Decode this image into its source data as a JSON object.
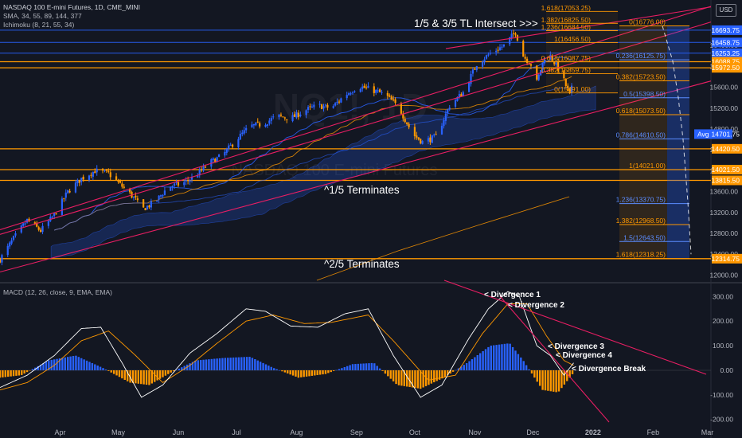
{
  "header": {
    "title": "NASDAQ 100 E-mini Futures, 1D, CME_MINI",
    "sma": "SMA, 34, 55, 89, 144, 377",
    "ichimoku": "Ichimoku (8, 21, 55, 34)",
    "currency": "USD",
    "watermark_symbol": "NQ1!, 1D",
    "watermark_name": "NASDAQ 100 E-mini Futures"
  },
  "colors": {
    "background": "#131722",
    "bull": "#2962ff",
    "bear": "#ff9800",
    "trendline": "#e91e63",
    "level": "#ff9800",
    "fib_blue": "#2962ff",
    "macd_line": "#ffffff",
    "signal_line": "#ff9800",
    "cloud": "#2962ff"
  },
  "chart_data": [
    {
      "type": "candlestick",
      "panel": "price",
      "title": "NASDAQ 100 E-mini Futures, 1D, CME_MINI",
      "x_ticks": [
        "Apr",
        "May",
        "Jun",
        "Jul",
        "Aug",
        "Sep",
        "Oct",
        "Nov",
        "Dec",
        "2022",
        "Feb",
        "Mar"
      ],
      "y_ticks": [
        12000,
        12400,
        12800,
        13200,
        13600,
        14000,
        14400,
        14800,
        15200,
        15600,
        16000,
        16400
      ],
      "ylim": [
        11900,
        17150
      ],
      "close_path": [
        {
          "date": "Mar 01",
          "close": 12300
        },
        {
          "date": "Mar 08",
          "close": 12700
        },
        {
          "date": "Mar 15",
          "close": 13050
        },
        {
          "date": "Mar 22",
          "close": 12850
        },
        {
          "date": "Mar 29",
          "close": 13150
        },
        {
          "date": "Apr 05",
          "close": 13600
        },
        {
          "date": "Apr 12",
          "close": 13850
        },
        {
          "date": "Apr 19",
          "close": 14000
        },
        {
          "date": "Apr 26",
          "close": 13950
        },
        {
          "date": "May 03",
          "close": 13700
        },
        {
          "date": "May 10",
          "close": 13450
        },
        {
          "date": "May 13",
          "close": 13250
        },
        {
          "date": "May 20",
          "close": 13400
        },
        {
          "date": "May 27",
          "close": 13700
        },
        {
          "date": "Jun 03",
          "close": 13750
        },
        {
          "date": "Jun 10",
          "close": 13900
        },
        {
          "date": "Jun 17",
          "close": 14150
        },
        {
          "date": "Jun 24",
          "close": 14300
        },
        {
          "date": "Jul 01",
          "close": 14600
        },
        {
          "date": "Jul 08",
          "close": 14850
        },
        {
          "date": "Jul 15",
          "close": 14900
        },
        {
          "date": "Jul 22",
          "close": 15050
        },
        {
          "date": "Jul 29",
          "close": 15000
        },
        {
          "date": "Aug 05",
          "close": 15150
        },
        {
          "date": "Aug 12",
          "close": 15250
        },
        {
          "date": "Aug 19",
          "close": 15200
        },
        {
          "date": "Aug 26",
          "close": 15450
        },
        {
          "date": "Sep 02",
          "close": 15620
        },
        {
          "date": "Sep 09",
          "close": 15550
        },
        {
          "date": "Sep 16",
          "close": 15450
        },
        {
          "date": "Sep 23",
          "close": 15200
        },
        {
          "date": "Sep 30",
          "close": 14700
        },
        {
          "date": "Oct 05",
          "close": 14550
        },
        {
          "date": "Oct 12",
          "close": 14650
        },
        {
          "date": "Oct 19",
          "close": 15250
        },
        {
          "date": "Oct 26",
          "close": 15500
        },
        {
          "date": "Nov 02",
          "close": 16050
        },
        {
          "date": "Nov 09",
          "close": 16250
        },
        {
          "date": "Nov 16",
          "close": 16400
        },
        {
          "date": "Nov 22",
          "close": 16660
        },
        {
          "date": "Nov 26",
          "close": 16200
        },
        {
          "date": "Dec 01",
          "close": 16000
        },
        {
          "date": "Dec 03",
          "close": 15700
        },
        {
          "date": "Dec 08",
          "close": 16300
        },
        {
          "date": "Dec 10",
          "close": 16200
        },
        {
          "date": "Dec 15",
          "close": 15900
        },
        {
          "date": "Dec 20",
          "close": 15450
        },
        {
          "date": "Dec 22",
          "close": 15700
        }
      ],
      "price_labels": [
        {
          "label": "16693.75",
          "kind": "price",
          "color": "#2962ff"
        },
        {
          "label": "16458.75",
          "kind": "price",
          "color": "#2962ff"
        },
        {
          "label": "16253.25",
          "kind": "price",
          "color": "#2962ff"
        },
        {
          "label": "16088.75",
          "kind": "level",
          "color": "#ff9800"
        },
        {
          "label": "15972.50",
          "kind": "level",
          "color": "#ff9800"
        },
        {
          "label": "14701.75",
          "kind": "avg",
          "color": "#2962ff",
          "tag": "Avg"
        },
        {
          "label": "14420.50",
          "kind": "level",
          "color": "#ff9800"
        },
        {
          "label": "14021.50",
          "kind": "level",
          "color": "#ff9800"
        },
        {
          "label": "13815.50",
          "kind": "level",
          "color": "#ff9800"
        },
        {
          "label": "12314.75",
          "kind": "level",
          "color": "#ff9800"
        }
      ],
      "horizontal_levels": [
        16693.75,
        16458.75,
        16253.25,
        16088.75,
        15972.5,
        14420.5,
        14021.5,
        13815.5,
        12314.75
      ],
      "fib_upper": [
        {
          "label": "1.618(17053.25)",
          "value": 17053.25
        },
        {
          "label": "1.382(16825.50)",
          "value": 16825.5
        },
        {
          "label": "1.236(16684.50)",
          "value": 16684.5
        },
        {
          "label": "1(16456.50)",
          "value": 16456.5
        },
        {
          "label": "0.618(16087.75)",
          "value": 16087.75
        },
        {
          "label": "0.382(15859.75)",
          "value": 15859.75
        },
        {
          "label": "0(15491.00)",
          "value": 15491.0
        }
      ],
      "fib_right": [
        {
          "label": "0(16776.00)",
          "value": 16776.0
        },
        {
          "label": "0.236(16125.75)",
          "value": 16125.75
        },
        {
          "label": "0.382(15723.50)",
          "value": 15723.5
        },
        {
          "label": "0.5(15398.50)",
          "value": 15398.5
        },
        {
          "label": "0.618(15073.50)",
          "value": 15073.5
        },
        {
          "label": "0.786(14610.50)",
          "value": 14610.5
        },
        {
          "label": "1(14021.00)",
          "value": 14021.0
        },
        {
          "label": "1.236(13370.75)",
          "value": 13370.75
        },
        {
          "label": "1.382(12968.50)",
          "value": 12968.5
        },
        {
          "label": "1.5(12643.50)",
          "value": 12643.5
        },
        {
          "label": "1.618(12318.25)",
          "value": 12318.25
        }
      ],
      "annotations": [
        {
          "text": "1/5 & 3/5 TL Intersect >>>"
        },
        {
          "text": "^1/5 Terminates"
        },
        {
          "text": "^2/5 Terminates"
        }
      ]
    },
    {
      "type": "macd",
      "panel": "indicator",
      "title": "MACD (12, 26, close, 9, EMA, EMA)",
      "y_ticks": [
        300,
        200,
        100,
        0,
        -100,
        -200
      ],
      "ylim": [
        -230,
        340
      ],
      "macd_path": [
        {
          "date": "Mar 01",
          "value": -70
        },
        {
          "date": "Mar 15",
          "value": -20
        },
        {
          "date": "Mar 29",
          "value": 60
        },
        {
          "date": "Apr 12",
          "value": 170
        },
        {
          "date": "Apr 22",
          "value": 175
        },
        {
          "date": "May 03",
          "value": 30
        },
        {
          "date": "May 13",
          "value": -110
        },
        {
          "date": "May 24",
          "value": -60
        },
        {
          "date": "Jun 07",
          "value": 70
        },
        {
          "date": "Jun 21",
          "value": 150
        },
        {
          "date": "Jul 06",
          "value": 250
        },
        {
          "date": "Jul 16",
          "value": 240
        },
        {
          "date": "Jul 29",
          "value": 180
        },
        {
          "date": "Aug 12",
          "value": 175
        },
        {
          "date": "Aug 26",
          "value": 230
        },
        {
          "date": "Sep 07",
          "value": 250
        },
        {
          "date": "Sep 20",
          "value": 60
        },
        {
          "date": "Oct 04",
          "value": -110
        },
        {
          "date": "Oct 15",
          "value": -60
        },
        {
          "date": "Oct 29",
          "value": 130
        },
        {
          "date": "Nov 08",
          "value": 250
        },
        {
          "date": "Nov 18",
          "value": 320
        },
        {
          "date": "Nov 24",
          "value": 300
        },
        {
          "date": "Dec 03",
          "value": 100
        },
        {
          "date": "Dec 10",
          "value": 60
        },
        {
          "date": "Dec 17",
          "value": -20
        },
        {
          "date": "Dec 22",
          "value": 30
        }
      ],
      "signal_path": [
        {
          "date": "Mar 01",
          "value": -80
        },
        {
          "date": "Mar 15",
          "value": -50
        },
        {
          "date": "Mar 29",
          "value": 20
        },
        {
          "date": "Apr 12",
          "value": 120
        },
        {
          "date": "Apr 26",
          "value": 160
        },
        {
          "date": "May 10",
          "value": 60
        },
        {
          "date": "May 24",
          "value": -50
        },
        {
          "date": "Jun 07",
          "value": 20
        },
        {
          "date": "Jun 21",
          "value": 110
        },
        {
          "date": "Jul 06",
          "value": 200
        },
        {
          "date": "Jul 20",
          "value": 225
        },
        {
          "date": "Aug 05",
          "value": 190
        },
        {
          "date": "Aug 19",
          "value": 195
        },
        {
          "date": "Sep 07",
          "value": 225
        },
        {
          "date": "Sep 20",
          "value": 120
        },
        {
          "date": "Oct 08",
          "value": -40
        },
        {
          "date": "Oct 22",
          "value": -20
        },
        {
          "date": "Nov 05",
          "value": 150
        },
        {
          "date": "Nov 18",
          "value": 270
        },
        {
          "date": "Nov 28",
          "value": 270
        },
        {
          "date": "Dec 08",
          "value": 140
        },
        {
          "date": "Dec 17",
          "value": 40
        },
        {
          "date": "Dec 22",
          "value": 20
        }
      ],
      "histogram_profile": [
        {
          "date": "Mar 01",
          "value": -30
        },
        {
          "date": "Mar 12",
          "value": -20
        },
        {
          "date": "Mar 26",
          "value": 40
        },
        {
          "date": "Apr 09",
          "value": 60
        },
        {
          "date": "Apr 23",
          "value": 10
        },
        {
          "date": "May 07",
          "value": -50
        },
        {
          "date": "May 17",
          "value": -60
        },
        {
          "date": "May 28",
          "value": -10
        },
        {
          "date": "Jun 10",
          "value": 40
        },
        {
          "date": "Jun 24",
          "value": 50
        },
        {
          "date": "Jul 08",
          "value": 55
        },
        {
          "date": "Jul 20",
          "value": 10
        },
        {
          "date": "Aug 02",
          "value": -30
        },
        {
          "date": "Aug 16",
          "value": -15
        },
        {
          "date": "Aug 30",
          "value": 25
        },
        {
          "date": "Sep 10",
          "value": 30
        },
        {
          "date": "Sep 22",
          "value": -60
        },
        {
          "date": "Oct 04",
          "value": -75
        },
        {
          "date": "Oct 16",
          "value": -30
        },
        {
          "date": "Oct 28",
          "value": 30
        },
        {
          "date": "Nov 09",
          "value": 100
        },
        {
          "date": "Nov 19",
          "value": 110
        },
        {
          "date": "Nov 26",
          "value": 40
        },
        {
          "date": "Dec 06",
          "value": -80
        },
        {
          "date": "Dec 14",
          "value": -90
        },
        {
          "date": "Dec 22",
          "value": -10
        }
      ],
      "annotations": [
        {
          "text": "< Divergence 1"
        },
        {
          "text": "< Divergence 2"
        },
        {
          "text": "< Divergence 3"
        },
        {
          "text": "< Divergence 4"
        },
        {
          "text": "< Divergence Break"
        }
      ]
    }
  ]
}
